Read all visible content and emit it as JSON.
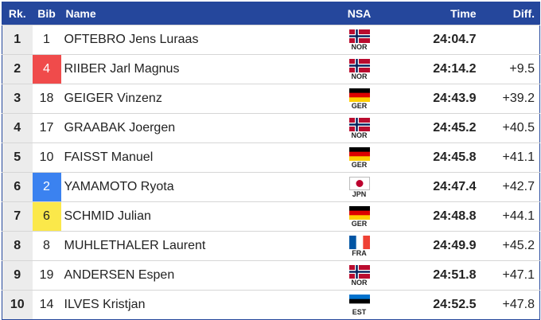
{
  "table": {
    "header": [
      "Rk.",
      "Bib",
      "Name",
      "NSA",
      "Time",
      "Diff."
    ],
    "header_color": "#25479c",
    "flags": {
      "NOR": {
        "pattern": "cross",
        "colors": [
          "#ba0c2f",
          "#ffffff",
          "#00205b"
        ]
      },
      "GER": {
        "pattern": "horizontal",
        "colors": [
          "#000000",
          "#dd0000",
          "#ffce00"
        ]
      },
      "JPN": {
        "pattern": "disc",
        "colors": [
          "#ffffff",
          "#bc002d"
        ]
      },
      "FRA": {
        "pattern": "vertical",
        "colors": [
          "#0055a4",
          "#ffffff",
          "#ef4135"
        ]
      },
      "EST": {
        "pattern": "horizontal",
        "colors": [
          "#0072ce",
          "#000000",
          "#ffffff"
        ]
      }
    },
    "rows": [
      {
        "rank": "1",
        "bib": "1",
        "name": "OFTEBRO Jens Luraas",
        "nsa": "NOR",
        "time": "24:04.7"
      },
      {
        "rank": "2",
        "bib": "4",
        "bib_color": "#f04b4b",
        "name": "RIIBER Jarl Magnus",
        "nsa": "NOR",
        "time": "24:14.2",
        "diff": "+9.5"
      },
      {
        "rank": "3",
        "bib": "18",
        "name": "GEIGER Vinzenz",
        "nsa": "GER",
        "time": "24:43.9",
        "diff": "+39.2"
      },
      {
        "rank": "4",
        "bib": "17",
        "name": "GRAABAK Joergen",
        "nsa": "NOR",
        "time": "24:45.2",
        "diff": "+40.5"
      },
      {
        "rank": "5",
        "bib": "10",
        "name": "FAISST Manuel",
        "nsa": "GER",
        "time": "24:45.8",
        "diff": "+41.1"
      },
      {
        "rank": "6",
        "bib": "2",
        "bib_color": "#3b82f0",
        "name": "YAMAMOTO Ryota",
        "nsa": "JPN",
        "time": "24:47.4",
        "diff": "+42.7"
      },
      {
        "rank": "7",
        "bib": "6",
        "bib_color": "#fbe84a",
        "name": "SCHMID Julian",
        "nsa": "GER",
        "time": "24:48.8",
        "diff": "+44.1"
      },
      {
        "rank": "8",
        "bib": "8",
        "name": "MUHLETHALER Laurent",
        "nsa": "FRA",
        "time": "24:49.9",
        "diff": "+45.2"
      },
      {
        "rank": "9",
        "bib": "19",
        "name": "ANDERSEN Espen",
        "nsa": "NOR",
        "time": "24:51.8",
        "diff": "+47.1"
      },
      {
        "rank": "10",
        "bib": "14",
        "name": "ILVES Kristjan",
        "nsa": "EST",
        "time": "24:52.5",
        "diff": "+47.8"
      }
    ]
  }
}
